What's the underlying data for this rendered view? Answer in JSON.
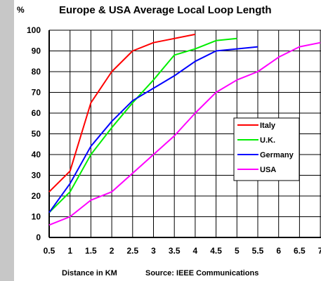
{
  "chart_data": {
    "type": "line",
    "title": "Europe & USA Average Local Loop Length",
    "ylabel": "%",
    "xlabel": "Distance in KM",
    "source": "Source: IEEE Communications",
    "xlim": [
      0.5,
      7
    ],
    "ylim": [
      0,
      100
    ],
    "x_ticks": [
      "0.5",
      "1",
      "1.5",
      "2",
      "2.5",
      "3",
      "3.5",
      "4",
      "4.5",
      "5",
      "5.5",
      "6",
      "6.5",
      "7"
    ],
    "y_ticks": [
      "0",
      "10",
      "20",
      "30",
      "40",
      "50",
      "60",
      "70",
      "80",
      "90",
      "100"
    ],
    "grid": true,
    "legend_position": "right",
    "series": [
      {
        "name": "Italy",
        "color": "#ff0000",
        "points": [
          [
            0.5,
            22
          ],
          [
            1,
            32
          ],
          [
            1.5,
            65
          ],
          [
            2,
            80
          ],
          [
            2.5,
            90
          ],
          [
            3,
            94
          ],
          [
            3.5,
            96
          ],
          [
            4,
            98
          ]
        ]
      },
      {
        "name": "U.K.",
        "color": "#00ee00",
        "points": [
          [
            0.5,
            12
          ],
          [
            1,
            22
          ],
          [
            1.5,
            40
          ],
          [
            2,
            53
          ],
          [
            2.5,
            65
          ],
          [
            3,
            76
          ],
          [
            3.5,
            88
          ],
          [
            4,
            91
          ],
          [
            4.5,
            95
          ],
          [
            5,
            96
          ]
        ]
      },
      {
        "name": "Germany",
        "color": "#0000ff",
        "points": [
          [
            0.5,
            12
          ],
          [
            1,
            26
          ],
          [
            1.5,
            44
          ],
          [
            2,
            56
          ],
          [
            2.5,
            66
          ],
          [
            3,
            72
          ],
          [
            3.5,
            78
          ],
          [
            4,
            85
          ],
          [
            4.5,
            90
          ],
          [
            5,
            91
          ],
          [
            5.5,
            92
          ]
        ]
      },
      {
        "name": "USA",
        "color": "#ff00ff",
        "points": [
          [
            0.5,
            6
          ],
          [
            1,
            10
          ],
          [
            1.5,
            18
          ],
          [
            2,
            22
          ],
          [
            2.5,
            31
          ],
          [
            3,
            40
          ],
          [
            3.5,
            49
          ],
          [
            4,
            60
          ],
          [
            4.5,
            70
          ],
          [
            5,
            76
          ],
          [
            5.5,
            80
          ],
          [
            6,
            87
          ],
          [
            6.5,
            92
          ],
          [
            7,
            94
          ]
        ]
      }
    ]
  }
}
